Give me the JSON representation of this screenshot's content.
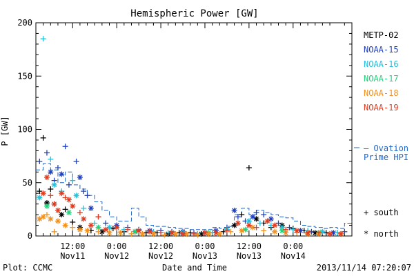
{
  "chart_data": {
    "type": "scatter",
    "title": "Hemispheric Power [GW]",
    "xlabel": "Date and Time",
    "ylabel": "P [GW]",
    "ylim": [
      0,
      200
    ],
    "yticks": [
      0,
      50,
      100,
      150,
      200
    ],
    "x_unit": "hours since 2013-11-11 00:00 UT",
    "xlim": [
      2,
      88
    ],
    "xticks": [
      {
        "h": 12,
        "line1": "12:00",
        "line2": "Nov11"
      },
      {
        "h": 24,
        "line1": "0:00",
        "line2": "Nov12"
      },
      {
        "h": 36,
        "line1": "12:00",
        "line2": "Nov12"
      },
      {
        "h": 48,
        "line1": "0:00",
        "line2": "Nov13"
      },
      {
        "h": 60,
        "line1": "12:00",
        "line2": "Nov13"
      },
      {
        "h": 72,
        "line1": "0:00",
        "line2": "Nov14"
      }
    ],
    "legend": {
      "placement": "right",
      "satellites": [
        {
          "name": "METP-02",
          "color": "#000000"
        },
        {
          "name": "NOAA-15",
          "color": "#1f3fbf"
        },
        {
          "name": "NOAA-16",
          "color": "#22c0dd"
        },
        {
          "name": "NOAA-17",
          "color": "#22d27a"
        },
        {
          "name": "NOAA-18",
          "color": "#f09020"
        },
        {
          "name": "NOAA-19",
          "color": "#e03a1e"
        }
      ],
      "ovation_line1": "— Ovation",
      "ovation_line2": "Prime HPI",
      "south_label": "+ south",
      "north_label": "* north"
    },
    "ovation_color": "#1f66c6",
    "ovation": [
      [
        2,
        62
      ],
      [
        4,
        68
      ],
      [
        6,
        62
      ],
      [
        8,
        50
      ],
      [
        10,
        60
      ],
      [
        12,
        48
      ],
      [
        14,
        44
      ],
      [
        16,
        38
      ],
      [
        18,
        32
      ],
      [
        20,
        24
      ],
      [
        22,
        18
      ],
      [
        24,
        14
      ],
      [
        26,
        14
      ],
      [
        28,
        26
      ],
      [
        30,
        18
      ],
      [
        32,
        10
      ],
      [
        34,
        9
      ],
      [
        36,
        9
      ],
      [
        38,
        8
      ],
      [
        40,
        7
      ],
      [
        42,
        7
      ],
      [
        44,
        6
      ],
      [
        46,
        6
      ],
      [
        48,
        6
      ],
      [
        50,
        8
      ],
      [
        52,
        7
      ],
      [
        54,
        9
      ],
      [
        56,
        20
      ],
      [
        58,
        26
      ],
      [
        60,
        20
      ],
      [
        62,
        24
      ],
      [
        64,
        22
      ],
      [
        66,
        20
      ],
      [
        68,
        18
      ],
      [
        70,
        17
      ],
      [
        72,
        14
      ],
      [
        74,
        10
      ],
      [
        76,
        9
      ],
      [
        78,
        8
      ],
      [
        80,
        7
      ],
      [
        82,
        8
      ],
      [
        84,
        7
      ],
      [
        86,
        12
      ],
      [
        88,
        14
      ]
    ],
    "series": [
      {
        "name": "METP-02",
        "color": "#000000",
        "points": [
          [
            3,
            42,
            "s"
          ],
          [
            4,
            92,
            "s"
          ],
          [
            5,
            31,
            "n"
          ],
          [
            6,
            44,
            "s"
          ],
          [
            7,
            30,
            "s"
          ],
          [
            9,
            20,
            "n"
          ],
          [
            10,
            25,
            "s"
          ],
          [
            12,
            13,
            "s"
          ],
          [
            14,
            8,
            "n"
          ],
          [
            17,
            5,
            "s"
          ],
          [
            20,
            4,
            "n"
          ],
          [
            23,
            7,
            "s"
          ],
          [
            26,
            4,
            "s"
          ],
          [
            29,
            4,
            "n"
          ],
          [
            32,
            3,
            "s"
          ],
          [
            35,
            3,
            "s"
          ],
          [
            38,
            2,
            "n"
          ],
          [
            41,
            3,
            "s"
          ],
          [
            44,
            3,
            "s"
          ],
          [
            47,
            2,
            "n"
          ],
          [
            50,
            3,
            "s"
          ],
          [
            53,
            4,
            "s"
          ],
          [
            56,
            10,
            "n"
          ],
          [
            58,
            20,
            "s"
          ],
          [
            60,
            64,
            "s"
          ],
          [
            62,
            16,
            "n"
          ],
          [
            64,
            12,
            "s"
          ],
          [
            66,
            8,
            "s"
          ],
          [
            69,
            10,
            "n"
          ],
          [
            72,
            7,
            "s"
          ],
          [
            75,
            5,
            "s"
          ],
          [
            78,
            3,
            "n"
          ],
          [
            81,
            3,
            "s"
          ],
          [
            84,
            3,
            "s"
          ]
        ]
      },
      {
        "name": "NOAA-15",
        "color": "#1f3fbf",
        "points": [
          [
            3,
            70,
            "s"
          ],
          [
            5,
            78,
            "s"
          ],
          [
            6,
            60,
            "n"
          ],
          [
            7,
            52,
            "s"
          ],
          [
            8,
            64,
            "s"
          ],
          [
            9,
            58,
            "n"
          ],
          [
            10,
            84,
            "s"
          ],
          [
            11,
            48,
            "s"
          ],
          [
            13,
            70,
            "s"
          ],
          [
            14,
            55,
            "n"
          ],
          [
            15,
            42,
            "s"
          ],
          [
            16,
            38,
            "s"
          ],
          [
            17,
            26,
            "n"
          ],
          [
            19,
            18,
            "s"
          ],
          [
            21,
            12,
            "s"
          ],
          [
            24,
            10,
            "n"
          ],
          [
            27,
            8,
            "s"
          ],
          [
            30,
            6,
            "s"
          ],
          [
            33,
            5,
            "n"
          ],
          [
            36,
            5,
            "s"
          ],
          [
            39,
            4,
            "s"
          ],
          [
            42,
            4,
            "n"
          ],
          [
            45,
            3,
            "s"
          ],
          [
            48,
            3,
            "s"
          ],
          [
            51,
            5,
            "n"
          ],
          [
            54,
            8,
            "s"
          ],
          [
            56,
            24,
            "n"
          ],
          [
            57,
            18,
            "s"
          ],
          [
            59,
            14,
            "s"
          ],
          [
            61,
            18,
            "n"
          ],
          [
            62,
            22,
            "s"
          ],
          [
            64,
            20,
            "s"
          ],
          [
            66,
            16,
            "n"
          ],
          [
            68,
            12,
            "s"
          ],
          [
            71,
            8,
            "s"
          ],
          [
            74,
            5,
            "n"
          ],
          [
            77,
            4,
            "s"
          ],
          [
            80,
            3,
            "s"
          ],
          [
            83,
            3,
            "n"
          ],
          [
            86,
            4,
            "s"
          ]
        ]
      },
      {
        "name": "NOAA-16",
        "color": "#22c0dd",
        "points": [
          [
            3,
            36,
            "n"
          ],
          [
            4,
            185,
            "s"
          ],
          [
            6,
            72,
            "s"
          ],
          [
            7,
            48,
            "n"
          ],
          [
            9,
            42,
            "s"
          ],
          [
            12,
            52,
            "s"
          ],
          [
            13,
            38,
            "n"
          ],
          [
            15,
            26,
            "s"
          ],
          [
            18,
            12,
            "s"
          ],
          [
            22,
            8,
            "n"
          ],
          [
            26,
            6,
            "s"
          ],
          [
            30,
            5,
            "n"
          ],
          [
            34,
            4,
            "s"
          ],
          [
            38,
            3,
            "s"
          ],
          [
            42,
            3,
            "n"
          ],
          [
            46,
            2,
            "s"
          ],
          [
            50,
            3,
            "s"
          ],
          [
            54,
            6,
            "n"
          ],
          [
            57,
            12,
            "s"
          ],
          [
            60,
            14,
            "n"
          ],
          [
            63,
            12,
            "s"
          ],
          [
            66,
            10,
            "s"
          ],
          [
            69,
            8,
            "n"
          ],
          [
            72,
            6,
            "s"
          ],
          [
            76,
            5,
            "s"
          ],
          [
            80,
            4,
            "n"
          ],
          [
            84,
            3,
            "s"
          ]
        ]
      },
      {
        "name": "NOAA-17",
        "color": "#22d27a",
        "points": [
          [
            5,
            28,
            "n"
          ],
          [
            11,
            22,
            "n"
          ],
          [
            19,
            8,
            "n"
          ],
          [
            29,
            4,
            "n"
          ],
          [
            39,
            3,
            "n"
          ],
          [
            49,
            3,
            "n"
          ],
          [
            59,
            6,
            "n"
          ],
          [
            69,
            5,
            "n"
          ],
          [
            79,
            3,
            "n"
          ]
        ]
      },
      {
        "name": "NOAA-18",
        "color": "#f09020",
        "points": [
          [
            3,
            16,
            "n"
          ],
          [
            4,
            18,
            "n"
          ],
          [
            5,
            20,
            "s"
          ],
          [
            6,
            16,
            "n"
          ],
          [
            7,
            4,
            "s"
          ],
          [
            8,
            14,
            "n"
          ],
          [
            10,
            10,
            "n"
          ],
          [
            12,
            8,
            "s"
          ],
          [
            14,
            6,
            "n"
          ],
          [
            16,
            5,
            "n"
          ],
          [
            19,
            4,
            "s"
          ],
          [
            22,
            3,
            "n"
          ],
          [
            25,
            3,
            "n"
          ],
          [
            28,
            2,
            "s"
          ],
          [
            31,
            2,
            "n"
          ],
          [
            34,
            2,
            "n"
          ],
          [
            37,
            1,
            "s"
          ],
          [
            40,
            2,
            "n"
          ],
          [
            43,
            2,
            "n"
          ],
          [
            46,
            1,
            "s"
          ],
          [
            49,
            2,
            "n"
          ],
          [
            52,
            2,
            "n"
          ],
          [
            55,
            4,
            "s"
          ],
          [
            58,
            5,
            "n"
          ],
          [
            61,
            8,
            "n"
          ],
          [
            64,
            5,
            "s"
          ],
          [
            67,
            4,
            "n"
          ],
          [
            70,
            3,
            "n"
          ],
          [
            73,
            3,
            "s"
          ],
          [
            76,
            2,
            "n"
          ],
          [
            79,
            2,
            "n"
          ],
          [
            82,
            2,
            "s"
          ],
          [
            85,
            2,
            "n"
          ]
        ]
      },
      {
        "name": "NOAA-19",
        "color": "#e03a1e",
        "points": [
          [
            4,
            40,
            "n"
          ],
          [
            5,
            55,
            "n"
          ],
          [
            6,
            38,
            "s"
          ],
          [
            7,
            30,
            "n"
          ],
          [
            8,
            24,
            "n"
          ],
          [
            9,
            40,
            "n"
          ],
          [
            10,
            36,
            "s"
          ],
          [
            11,
            34,
            "n"
          ],
          [
            12,
            28,
            "n"
          ],
          [
            14,
            22,
            "s"
          ],
          [
            15,
            16,
            "n"
          ],
          [
            17,
            10,
            "n"
          ],
          [
            19,
            18,
            "s"
          ],
          [
            21,
            6,
            "n"
          ],
          [
            24,
            8,
            "n"
          ],
          [
            27,
            6,
            "s"
          ],
          [
            30,
            5,
            "n"
          ],
          [
            33,
            4,
            "n"
          ],
          [
            36,
            3,
            "s"
          ],
          [
            39,
            3,
            "n"
          ],
          [
            42,
            2,
            "n"
          ],
          [
            45,
            2,
            "s"
          ],
          [
            48,
            3,
            "n"
          ],
          [
            51,
            3,
            "n"
          ],
          [
            54,
            5,
            "s"
          ],
          [
            57,
            12,
            "n"
          ],
          [
            60,
            10,
            "n"
          ],
          [
            62,
            8,
            "s"
          ],
          [
            65,
            14,
            "n"
          ],
          [
            67,
            10,
            "n"
          ],
          [
            70,
            6,
            "s"
          ],
          [
            73,
            5,
            "n"
          ],
          [
            76,
            3,
            "n"
          ],
          [
            79,
            3,
            "s"
          ],
          [
            82,
            2,
            "n"
          ],
          [
            85,
            2,
            "n"
          ]
        ]
      }
    ]
  },
  "footer": {
    "left": "Plot: CCMC",
    "right": "2013/11/14 07:20:07"
  }
}
